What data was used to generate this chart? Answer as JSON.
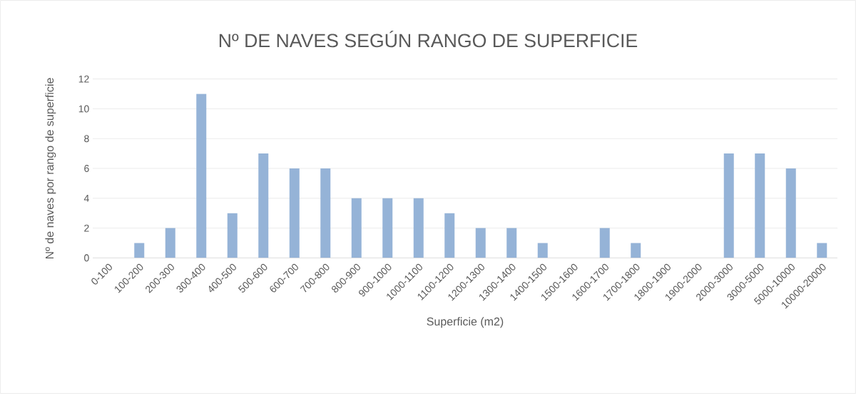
{
  "chart_data": {
    "type": "bar",
    "title": "Nº DE NAVES SEGÚN RANGO DE SUPERFICIE",
    "xlabel": "Superficie (m2)",
    "ylabel": "Nº de naves por rango de superficie",
    "categories": [
      "0-100",
      "100-200",
      "200-300",
      "300-400",
      "400-500",
      "500-600",
      "600-700",
      "700-800",
      "800-900",
      "900-1000",
      "1000-1100",
      "1100-1200",
      "1200-1300",
      "1300-1400",
      "1400-1500",
      "1500-1600",
      "1600-1700",
      "1700-1800",
      "1800-1900",
      "1900-2000",
      "2000-3000",
      "3000-5000",
      "5000-10000",
      "10000-20000"
    ],
    "values": [
      0,
      1,
      2,
      11,
      3,
      7,
      6,
      6,
      4,
      4,
      4,
      3,
      2,
      2,
      1,
      0,
      2,
      1,
      0,
      0,
      7,
      7,
      6,
      1
    ],
    "color": "#95b3d7",
    "ylim": [
      0,
      12
    ],
    "yticks": [
      0,
      2,
      4,
      6,
      8,
      10,
      12
    ],
    "grid": "y"
  }
}
